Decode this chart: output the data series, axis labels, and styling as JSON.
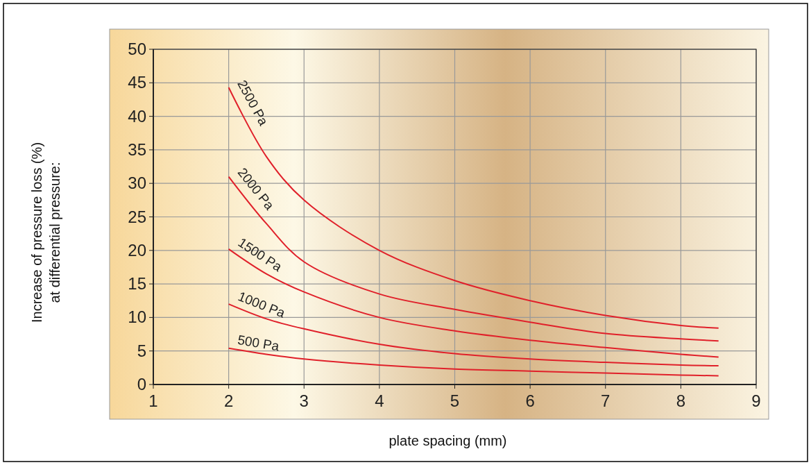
{
  "chart_data": {
    "type": "line",
    "xlabel": "plate spacing (mm)",
    "ylabel": "Increase of pressure loss (%)\nat differential pressure:",
    "x": [
      2,
      2.5,
      3,
      4,
      5,
      6,
      7,
      8,
      8.5
    ],
    "series": [
      {
        "name": "2500 Pa",
        "color": "#e0202a",
        "values": [
          44.3,
          34,
          27.5,
          20,
          15.5,
          12.5,
          10.3,
          8.8,
          8.4
        ]
      },
      {
        "name": "2000 Pa",
        "color": "#e0202a",
        "values": [
          31,
          24,
          18.3,
          13.5,
          11.2,
          9.3,
          7.6,
          6.8,
          6.5
        ]
      },
      {
        "name": "1500 Pa",
        "color": "#e0202a",
        "values": [
          20.2,
          16.5,
          13.8,
          10,
          8,
          6.6,
          5.5,
          4.5,
          4.1
        ]
      },
      {
        "name": "1000 Pa",
        "color": "#e0202a",
        "values": [
          12,
          9.8,
          8.3,
          6,
          4.6,
          3.8,
          3.3,
          2.9,
          2.8
        ]
      },
      {
        "name": "500 Pa",
        "color": "#e0202a",
        "values": [
          5.4,
          4.5,
          3.8,
          2.9,
          2.3,
          2,
          1.7,
          1.4,
          1.3
        ]
      }
    ],
    "xlim": [
      1,
      9
    ],
    "xticks": [
      1,
      2,
      3,
      4,
      5,
      6,
      7,
      8,
      9
    ],
    "ylim": [
      0,
      50
    ],
    "yticks": [
      0,
      5,
      10,
      15,
      20,
      25,
      30,
      35,
      40,
      45,
      50
    ],
    "grid": true,
    "marker": "none",
    "line_style": "solid"
  }
}
